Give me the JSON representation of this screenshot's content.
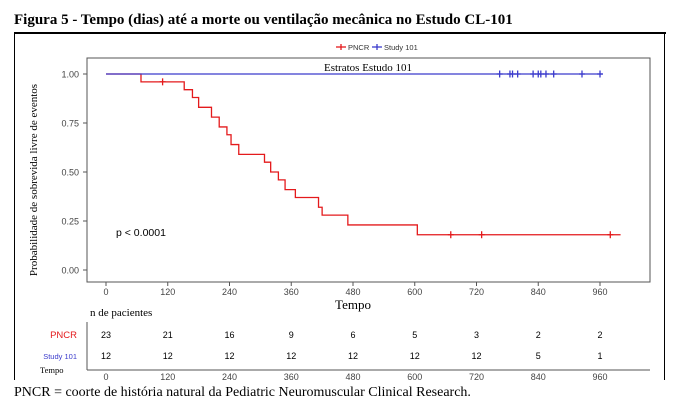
{
  "figure": {
    "title": "Figura 5 - Tempo (dias) até a morte ou ventilação mecânica no Estudo CL-101",
    "footnote": "PNCR = coorte de história natural da Pediatric Neuromuscular Clinical Research."
  },
  "chart_data": {
    "type": "line",
    "subtype": "kaplan-meier",
    "xlabel": "Tempo",
    "ylabel": "Probabilidade de sobrevida livre de eventos",
    "xlim": [
      0,
      1000
    ],
    "ylim": [
      0,
      1
    ],
    "x_ticks": [
      0,
      120,
      240,
      360,
      480,
      600,
      720,
      840,
      960
    ],
    "y_ticks": [
      0.0,
      0.25,
      0.5,
      0.75,
      1.0
    ],
    "x_tick_labels": [
      "0",
      "120",
      "240",
      "360",
      "480",
      "600",
      "720",
      "840",
      "960"
    ],
    "y_tick_labels": [
      "0.00",
      "0.25",
      "0.50",
      "0.75",
      "1.00"
    ],
    "grid": false,
    "legend": {
      "placement": "top",
      "title": "Estratos",
      "inline_label": "Estratos  Estudo 101"
    },
    "annotation": "p < 0.0001",
    "series": [
      {
        "name": "PNCR",
        "color": "#e41a1c",
        "steps": [
          [
            0,
            1.0
          ],
          [
            68,
            0.96
          ],
          [
            152,
            0.92
          ],
          [
            168,
            0.88
          ],
          [
            180,
            0.83
          ],
          [
            205,
            0.78
          ],
          [
            220,
            0.73
          ],
          [
            235,
            0.69
          ],
          [
            243,
            0.64
          ],
          [
            258,
            0.59
          ],
          [
            308,
            0.55
          ],
          [
            320,
            0.5
          ],
          [
            335,
            0.46
          ],
          [
            348,
            0.41
          ],
          [
            368,
            0.37
          ],
          [
            413,
            0.32
          ],
          [
            420,
            0.28
          ],
          [
            470,
            0.23
          ],
          [
            605,
            0.18
          ],
          [
            1000,
            0.18
          ]
        ],
        "censored": [
          [
            110,
            0.96
          ],
          [
            670,
            0.18
          ],
          [
            730,
            0.18
          ],
          [
            980,
            0.18
          ]
        ]
      },
      {
        "name": "Study 101",
        "color": "#3b3bcc",
        "steps": [
          [
            0,
            1.0
          ],
          [
            965,
            1.0
          ]
        ],
        "censored": [
          [
            765,
            1.0
          ],
          [
            785,
            1.0
          ],
          [
            790,
            1.0
          ],
          [
            800,
            1.0
          ],
          [
            830,
            1.0
          ],
          [
            840,
            1.0
          ],
          [
            845,
            1.0
          ],
          [
            855,
            1.0
          ],
          [
            870,
            1.0
          ],
          [
            925,
            1.0
          ],
          [
            960,
            1.0
          ]
        ]
      }
    ],
    "risk_table": {
      "title": "n de pacientes",
      "xlabel": "Tempo",
      "times": [
        0,
        120,
        240,
        360,
        480,
        600,
        720,
        840,
        960
      ],
      "rows": [
        {
          "name": "PNCR",
          "color": "#e41a1c",
          "values": [
            "23",
            "21",
            "16",
            "9",
            "6",
            "5",
            "3",
            "2",
            "2"
          ]
        },
        {
          "name": "Study 101",
          "color": "#3b3bcc",
          "values": [
            "12",
            "12",
            "12",
            "12",
            "12",
            "12",
            "12",
            "5",
            "1"
          ]
        }
      ]
    }
  }
}
